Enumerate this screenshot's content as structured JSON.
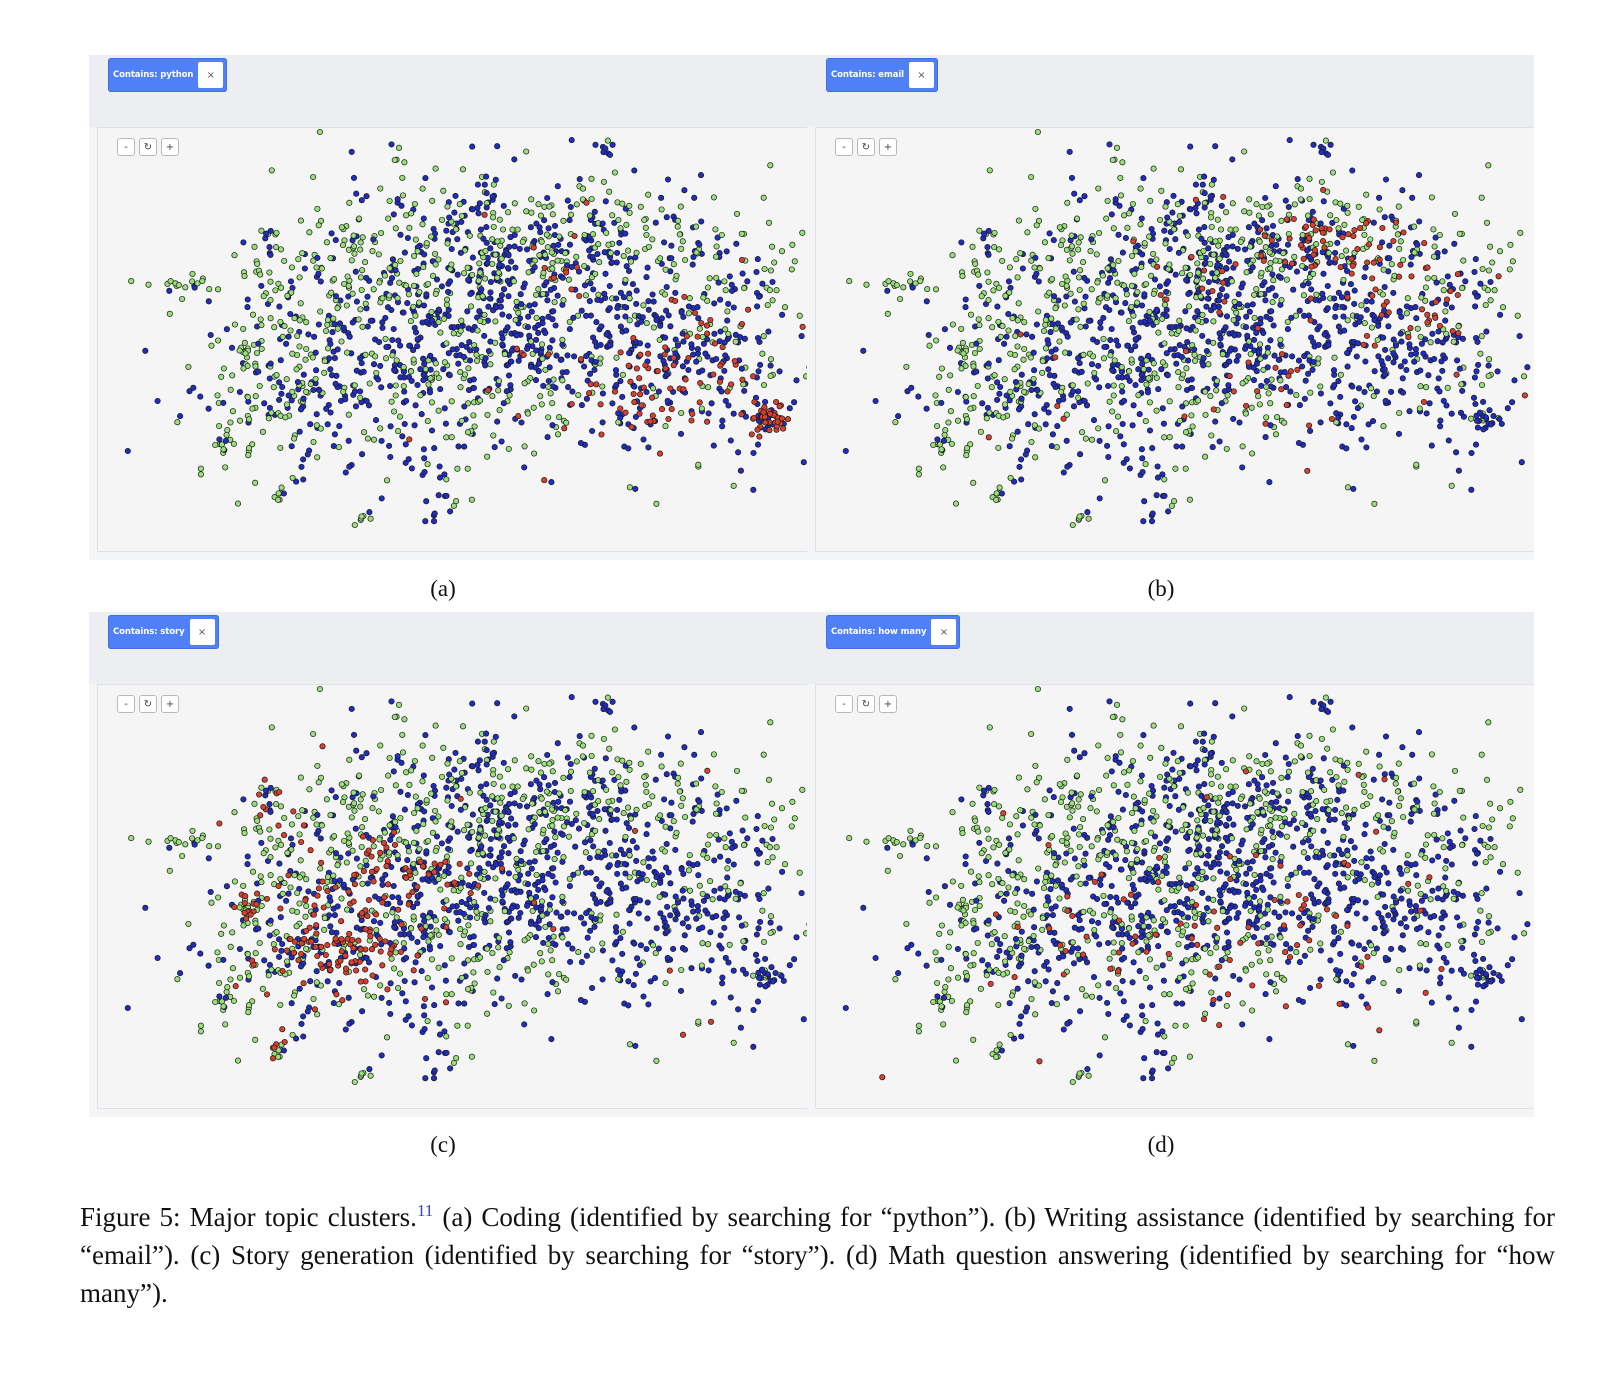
{
  "figure": {
    "panels": [
      {
        "id": "a",
        "filter_label": "Contains: python",
        "close_symbol": "×",
        "sublabel": "(a)"
      },
      {
        "id": "b",
        "filter_label": "Contains: email",
        "close_symbol": "×",
        "sublabel": "(b)"
      },
      {
        "id": "c",
        "filter_label": "Contains: story",
        "close_symbol": "×",
        "sublabel": "(c)"
      },
      {
        "id": "d",
        "filter_label": "Contains: how many",
        "close_symbol": "×",
        "sublabel": "(d)"
      }
    ],
    "zoom_controls": {
      "zoom_out": "-",
      "reset": "↻",
      "zoom_in": "+"
    },
    "colors": {
      "match": "#d8402e",
      "cluster_blue": "#1f2dc0",
      "cluster_green": "#98e07a",
      "marker_outline": "#1a1a1a",
      "filter_tag": "#4f80f7"
    },
    "caption": {
      "lead": "Figure 5: Major topic clusters.",
      "footnote": "11",
      "body": " (a) Coding (identified by searching for “python”). (b) Writing assistance (identified by searching for “email”). (c) Story generation (identified by searching for “story”). (d) Math question answering (identified by searching for “how many”)."
    }
  }
}
